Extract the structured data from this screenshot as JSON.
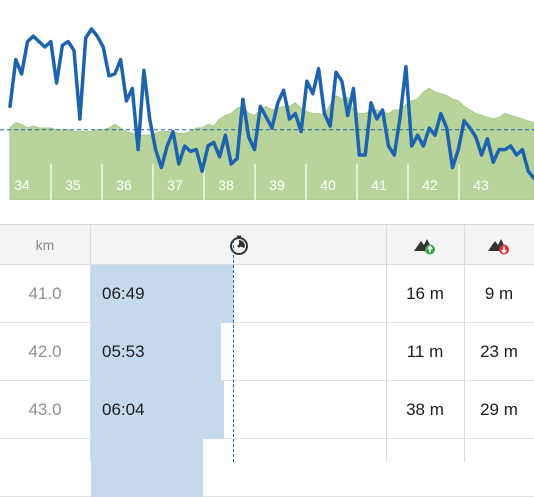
{
  "chart_data": {
    "type": "line",
    "x_ticks": [
      "34",
      "35",
      "36",
      "37",
      "38",
      "39",
      "40",
      "41",
      "42",
      "43"
    ],
    "pace_series": [
      0.52,
      0.78,
      0.7,
      0.88,
      0.91,
      0.88,
      0.85,
      0.88,
      0.65,
      0.86,
      0.88,
      0.83,
      0.45,
      0.9,
      0.95,
      0.91,
      0.85,
      0.69,
      0.7,
      0.78,
      0.55,
      0.62,
      0.28,
      0.72,
      0.45,
      0.28,
      0.18,
      0.3,
      0.38,
      0.2,
      0.3,
      0.27,
      0.28,
      0.16,
      0.3,
      0.32,
      0.24,
      0.36,
      0.2,
      0.23,
      0.56,
      0.35,
      0.28,
      0.52,
      0.46,
      0.4,
      0.54,
      0.61,
      0.45,
      0.48,
      0.38,
      0.66,
      0.59,
      0.73,
      0.48,
      0.41,
      0.71,
      0.66,
      0.47,
      0.62,
      0.25,
      0.25,
      0.54,
      0.45,
      0.5,
      0.3,
      0.25,
      0.46,
      0.74,
      0.3,
      0.36,
      0.3,
      0.4,
      0.36,
      0.48,
      0.4,
      0.18,
      0.28,
      0.44,
      0.4,
      0.35,
      0.25,
      0.34,
      0.21,
      0.28,
      0.28,
      0.3,
      0.25,
      0.28,
      0.16,
      0.12
    ],
    "pace_reference": 0.39,
    "elevation_series": [
      0.4,
      0.43,
      0.42,
      0.4,
      0.41,
      0.4,
      0.4,
      0.4,
      0.39,
      0.39,
      0.39,
      0.38,
      0.38,
      0.38,
      0.38,
      0.39,
      0.39,
      0.4,
      0.42,
      0.4,
      0.38,
      0.37,
      0.36,
      0.36,
      0.36,
      0.37,
      0.38,
      0.38,
      0.38,
      0.37,
      0.37,
      0.38,
      0.4,
      0.4,
      0.42,
      0.41,
      0.45,
      0.47,
      0.48,
      0.51,
      0.52,
      0.48,
      0.47,
      0.5,
      0.52,
      0.5,
      0.51,
      0.52,
      0.52,
      0.54,
      0.51,
      0.49,
      0.48,
      0.48,
      0.47,
      0.53,
      0.58,
      0.56,
      0.57,
      0.5,
      0.48,
      0.48,
      0.5,
      0.5,
      0.49,
      0.48,
      0.5,
      0.5,
      0.53,
      0.55,
      0.56,
      0.6,
      0.62,
      0.6,
      0.59,
      0.58,
      0.56,
      0.55,
      0.52,
      0.5,
      0.48,
      0.47,
      0.46,
      0.45,
      0.46,
      0.48,
      0.47,
      0.46,
      0.45,
      0.44,
      0.43
    ],
    "colors": {
      "line": "#1d63b0",
      "area": "#b9d49b",
      "area_edge": "#a7c784",
      "tick_text": "#ffffff",
      "reference": "#1d63b0"
    }
  },
  "table": {
    "headers": {
      "km": "km",
      "pace_icon": "stopwatch-icon",
      "ascent_icon": "ascent-icon",
      "descent_icon": "descent-icon"
    },
    "rows": [
      {
        "km": "41.0",
        "pace": "06:49",
        "ascent": "16 m",
        "descent": "9 m",
        "pace_fill": 0.48
      },
      {
        "km": "42.0",
        "pace": "05:53",
        "ascent": "11 m",
        "descent": "23 m",
        "pace_fill": 0.44
      },
      {
        "km": "43.0",
        "pace": "06:04",
        "ascent": "38 m",
        "descent": "29 m",
        "pace_fill": 0.45
      },
      {
        "km": "",
        "pace": "",
        "ascent": "",
        "descent": "",
        "pace_fill": 0.38
      }
    ],
    "reference_fill": 0.48
  },
  "colors": {
    "pace_bar": "#c5d9ec",
    "ascent_badge": "#3aa64a",
    "descent_badge": "#d93636"
  }
}
